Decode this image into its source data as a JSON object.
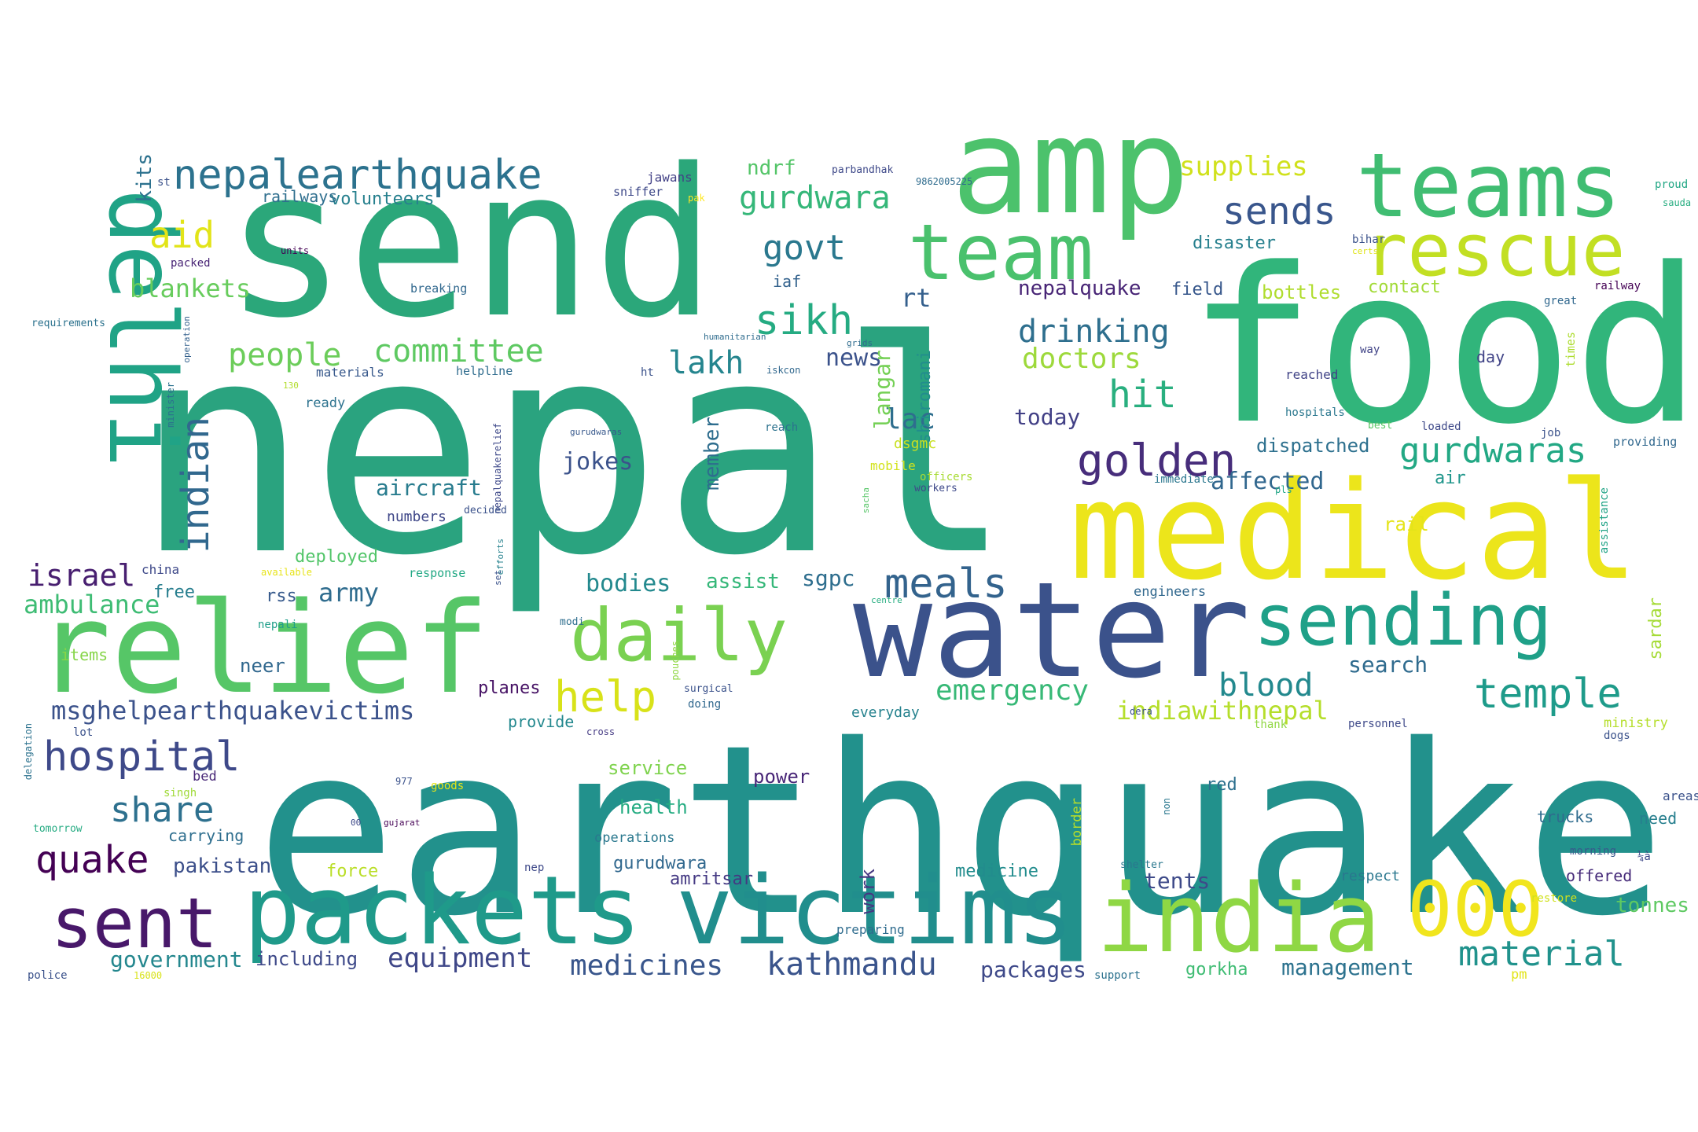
{
  "words": [
    {
      "text": "nepal",
      "color": "#2aa37f"
    },
    {
      "text": "earthquake",
      "color": "#22918c"
    },
    {
      "text": "send",
      "color": "#2ba77a"
    },
    {
      "text": "food",
      "color": "#31b57b"
    },
    {
      "text": "amp",
      "color": "#4cc26c"
    },
    {
      "text": "medical",
      "color": "#ece51b"
    },
    {
      "text": "water",
      "color": "#3b528b"
    },
    {
      "text": "relief",
      "color": "#56c667"
    },
    {
      "text": "packets",
      "color": "#1f9a8a"
    },
    {
      "text": "victims",
      "color": "#218e8d"
    },
    {
      "text": "india",
      "color": "#8fd744"
    },
    {
      "text": "delhi",
      "color": "#20a386"
    },
    {
      "text": "teams",
      "color": "#40bd72"
    },
    {
      "text": "team",
      "color": "#4ac16d"
    },
    {
      "text": "rescue",
      "color": "#c2df23"
    },
    {
      "text": "sending",
      "color": "#1fa088"
    },
    {
      "text": "daily",
      "color": "#7ad151"
    },
    {
      "text": "sent",
      "color": "#48186a"
    },
    {
      "text": "000",
      "color": "#f1e51d"
    },
    {
      "text": "nepalearthquake",
      "color": "#2c728e"
    },
    {
      "text": "hospital",
      "color": "#3e4989"
    },
    {
      "text": "golden",
      "color": "#472d7b"
    },
    {
      "text": "temple",
      "color": "#1e9b8a"
    },
    {
      "text": "meals",
      "color": "#33638d"
    },
    {
      "text": "help",
      "color": "#d8e219"
    },
    {
      "text": "sikh",
      "color": "#25ab82"
    },
    {
      "text": "material",
      "color": "#20928c"
    },
    {
      "text": "gurdwaras",
      "color": "#22a884"
    },
    {
      "text": "committee",
      "color": "#5ec962"
    },
    {
      "text": "people",
      "color": "#6ccd5a"
    },
    {
      "text": "sends",
      "color": "#39568c"
    },
    {
      "text": "quake",
      "color": "#440154"
    },
    {
      "text": "share",
      "color": "#2d708e"
    },
    {
      "text": "indian",
      "color": "#31688e"
    },
    {
      "text": "gurdwara",
      "color": "#35b779"
    },
    {
      "text": "aid",
      "color": "#e2e418"
    },
    {
      "text": "govt",
      "color": "#2a788e"
    },
    {
      "text": "hit",
      "color": "#29af7f"
    },
    {
      "text": "kathmandu",
      "color": "#3a548c"
    },
    {
      "text": "blood",
      "color": "#23898e"
    },
    {
      "text": "drinking",
      "color": "#2e6f8e"
    },
    {
      "text": "emergency",
      "color": "#38b977"
    },
    {
      "text": "doctors",
      "color": "#9dd93b"
    },
    {
      "text": "lakh",
      "color": "#25858e"
    },
    {
      "text": "medicines",
      "color": "#39568c"
    },
    {
      "text": "equipment",
      "color": "#3f4788"
    },
    {
      "text": "israel",
      "color": "#481f70"
    },
    {
      "text": "ambulance",
      "color": "#3ebc74"
    },
    {
      "text": "msghelpearthquakevictims",
      "color": "#3b528b"
    },
    {
      "text": "indiawithnepal",
      "color": "#b5de2b"
    },
    {
      "text": "lac",
      "color": "#2e6e8e"
    },
    {
      "text": "supplies",
      "color": "#d0e11c"
    },
    {
      "text": "blankets",
      "color": "#67cc5c"
    },
    {
      "text": "army",
      "color": "#2f6c8e"
    },
    {
      "text": "affected",
      "color": "#31678e"
    },
    {
      "text": "nepalquake",
      "color": "#482576"
    },
    {
      "text": "today",
      "color": "#424086"
    },
    {
      "text": "ndrf",
      "color": "#54c568"
    },
    {
      "text": "government",
      "color": "#24878e"
    },
    {
      "text": "packages",
      "color": "#3e4989"
    },
    {
      "text": "management",
      "color": "#2c728e"
    },
    {
      "text": "tonnes",
      "color": "#5ec962"
    },
    {
      "text": "dispatched",
      "color": "#2d708e"
    },
    {
      "text": "news",
      "color": "#3b528b"
    },
    {
      "text": "rt",
      "color": "#35608d"
    },
    {
      "text": "langar",
      "color": "#74d055"
    },
    {
      "text": "shiromani",
      "color": "#228d8d"
    },
    {
      "text": "jokes",
      "color": "#3b528b"
    },
    {
      "text": "aircraft",
      "color": "#287c8e"
    },
    {
      "text": "bodies",
      "color": "#23898e"
    },
    {
      "text": "assist",
      "color": "#35b779"
    },
    {
      "text": "sgpc",
      "color": "#2e6e8e"
    },
    {
      "text": "member",
      "color": "#2e6d8e"
    },
    {
      "text": "search",
      "color": "#2f6b8e"
    },
    {
      "text": "tents",
      "color": "#3e4a89"
    },
    {
      "text": "pakistan",
      "color": "#3c4f8a"
    },
    {
      "text": "volunteers",
      "color": "#27808e"
    },
    {
      "text": "kits",
      "color": "#2c718e"
    },
    {
      "text": "bottles",
      "color": "#b0dd2f"
    },
    {
      "text": "contact",
      "color": "#a2da37"
    },
    {
      "text": "field",
      "color": "#38588c"
    },
    {
      "text": "iaf",
      "color": "#33628d"
    },
    {
      "text": "deployed",
      "color": "#52c569"
    },
    {
      "text": "free",
      "color": "#277e8e"
    },
    {
      "text": "rss",
      "color": "#375a8c"
    },
    {
      "text": "carrying",
      "color": "#2e6e8e"
    },
    {
      "text": "service",
      "color": "#7fd34e"
    },
    {
      "text": "health",
      "color": "#25ac82"
    },
    {
      "text": "power",
      "color": "#482677"
    },
    {
      "text": "work",
      "color": "#453882"
    },
    {
      "text": "gurudwara",
      "color": "#31688e"
    },
    {
      "text": "amritsar",
      "color": "#443983"
    },
    {
      "text": "medicine",
      "color": "#228c8d"
    },
    {
      "text": "including",
      "color": "#3e4989"
    },
    {
      "text": "gorkha",
      "color": "#3fbc73"
    },
    {
      "text": "red",
      "color": "#2d708e"
    },
    {
      "text": "neer",
      "color": "#31688e"
    },
    {
      "text": "planes",
      "color": "#471365"
    },
    {
      "text": "force",
      "color": "#bade28"
    },
    {
      "text": "disaster",
      "color": "#27808e"
    },
    {
      "text": "rail",
      "color": "#e5e419"
    },
    {
      "text": "air",
      "color": "#1f968b"
    },
    {
      "text": "sardar",
      "color": "#a5db36"
    },
    {
      "text": "trucks",
      "color": "#2f6c8e"
    },
    {
      "text": "need",
      "color": "#277f8e"
    },
    {
      "text": "offered",
      "color": "#472c7a"
    },
    {
      "text": "railways",
      "color": "#2e6e8e"
    },
    {
      "text": "mobile",
      "color": "#d2e21b"
    },
    {
      "text": "dsgmc",
      "color": "#c8e020"
    },
    {
      "text": "numbers",
      "color": "#3f4788"
    },
    {
      "text": "items",
      "color": "#86d549"
    },
    {
      "text": "provide",
      "color": "#23888e"
    },
    {
      "text": "everyday",
      "color": "#26828e"
    },
    {
      "text": "jawans",
      "color": "#424186"
    },
    {
      "text": "sniffer",
      "color": "#3e4989"
    },
    {
      "text": "parbandhak",
      "color": "#3e4989"
    },
    {
      "text": "9862005225",
      "color": "#2f6c8e"
    },
    {
      "text": "proud",
      "color": "#22a785"
    },
    {
      "text": "sauda",
      "color": "#27ad81"
    },
    {
      "text": "st",
      "color": "#3b528b"
    },
    {
      "text": "pak",
      "color": "#fde725"
    },
    {
      "text": "units",
      "color": "#440154"
    },
    {
      "text": "packed",
      "color": "#482475"
    },
    {
      "text": "breaking",
      "color": "#31688e"
    },
    {
      "text": "bihar",
      "color": "#3b528b"
    },
    {
      "text": "certs",
      "color": "#dfe318"
    },
    {
      "text": "railway",
      "color": "#440154"
    },
    {
      "text": "great",
      "color": "#31688e"
    },
    {
      "text": "requirements",
      "color": "#2c728e"
    },
    {
      "text": "minister",
      "color": "#2c718e"
    },
    {
      "text": "operation",
      "color": "#34618d"
    },
    {
      "text": "humanitarian",
      "color": "#2f6c8e"
    },
    {
      "text": "way",
      "color": "#414487"
    },
    {
      "text": "day",
      "color": "#414487"
    },
    {
      "text": "times",
      "color": "#addc30"
    },
    {
      "text": "materials",
      "color": "#38598c"
    },
    {
      "text": "helpline",
      "color": "#2f6c8e"
    },
    {
      "text": "ht",
      "color": "#3b528b"
    },
    {
      "text": "iskcon",
      "color": "#31688e"
    },
    {
      "text": "reached",
      "color": "#414487"
    },
    {
      "text": "130",
      "color": "#b2dd2d"
    },
    {
      "text": "ready",
      "color": "#2c728e"
    },
    {
      "text": "gurudwaras",
      "color": "#38598c"
    },
    {
      "text": "reach",
      "color": "#2c728e"
    },
    {
      "text": "hospitals",
      "color": "#2a778e"
    },
    {
      "text": "best",
      "color": "#58c765"
    },
    {
      "text": "loaded",
      "color": "#3e4989"
    },
    {
      "text": "job",
      "color": "#3b528b"
    },
    {
      "text": "providing",
      "color": "#31688e"
    },
    {
      "text": "nepalquakerelief",
      "color": "#3e4989"
    },
    {
      "text": "officers",
      "color": "#a8db34"
    },
    {
      "text": "workers",
      "color": "#3e4989"
    },
    {
      "text": "immediate",
      "color": "#2a768e"
    },
    {
      "text": "pls",
      "color": "#21a585"
    },
    {
      "text": "decided",
      "color": "#3b528b"
    },
    {
      "text": "efforts",
      "color": "#26828e"
    },
    {
      "text": "sacha",
      "color": "#56c667"
    },
    {
      "text": "assistance",
      "color": "#20a386"
    },
    {
      "text": "china",
      "color": "#3e4989"
    },
    {
      "text": "available",
      "color": "#e7e419"
    },
    {
      "text": "response",
      "color": "#22a884"
    },
    {
      "text": "set",
      "color": "#3b528b"
    },
    {
      "text": "centre",
      "color": "#27ad81"
    },
    {
      "text": "engineers",
      "color": "#31688e"
    },
    {
      "text": "nepali",
      "color": "#1f9e89"
    },
    {
      "text": "modi",
      "color": "#2e6e8e"
    },
    {
      "text": "pouches",
      "color": "#90d743"
    },
    {
      "text": "surgical",
      "color": "#3b528b"
    },
    {
      "text": "doing",
      "color": "#31688e"
    },
    {
      "text": "dera",
      "color": "#3b528b"
    },
    {
      "text": "thank",
      "color": "#90d743"
    },
    {
      "text": "personnel",
      "color": "#3e4989"
    },
    {
      "text": "ministry",
      "color": "#b5de2b"
    },
    {
      "text": "dogs",
      "color": "#3b528b"
    },
    {
      "text": "delegation",
      "color": "#2c728e"
    },
    {
      "text": "lot",
      "color": "#3b528b"
    },
    {
      "text": "cross",
      "color": "#443a83"
    },
    {
      "text": "bed",
      "color": "#482878"
    },
    {
      "text": "singh",
      "color": "#a0da39"
    },
    {
      "text": "977",
      "color": "#3b528b"
    },
    {
      "text": "goods",
      "color": "#e5e419"
    },
    {
      "text": "00",
      "color": "#3e4989"
    },
    {
      "text": "gujarat",
      "color": "#440154"
    },
    {
      "text": "tomorrow",
      "color": "#25ab82"
    },
    {
      "text": "operations",
      "color": "#2a788e"
    },
    {
      "text": "border",
      "color": "#b8de29"
    },
    {
      "text": "non",
      "color": "#2a778e"
    },
    {
      "text": "areas",
      "color": "#3b528b"
    },
    {
      "text": "¼à",
      "color": "#3e4989"
    },
    {
      "text": "morning",
      "color": "#38598c"
    },
    {
      "text": "nep",
      "color": "#3e4989"
    },
    {
      "text": "shelter",
      "color": "#2a778e"
    },
    {
      "text": "respect",
      "color": "#2a778e"
    },
    {
      "text": "restore",
      "color": "#d0e11c"
    },
    {
      "text": "pm",
      "color": "#e2e418"
    },
    {
      "text": "preparing",
      "color": "#2f6c8e"
    },
    {
      "text": "support",
      "color": "#2c728e"
    },
    {
      "text": "police",
      "color": "#3b528b"
    },
    {
      "text": "16000",
      "color": "#d8e219"
    },
    {
      "text": "grids",
      "color": "#2f6c8e"
    }
  ]
}
